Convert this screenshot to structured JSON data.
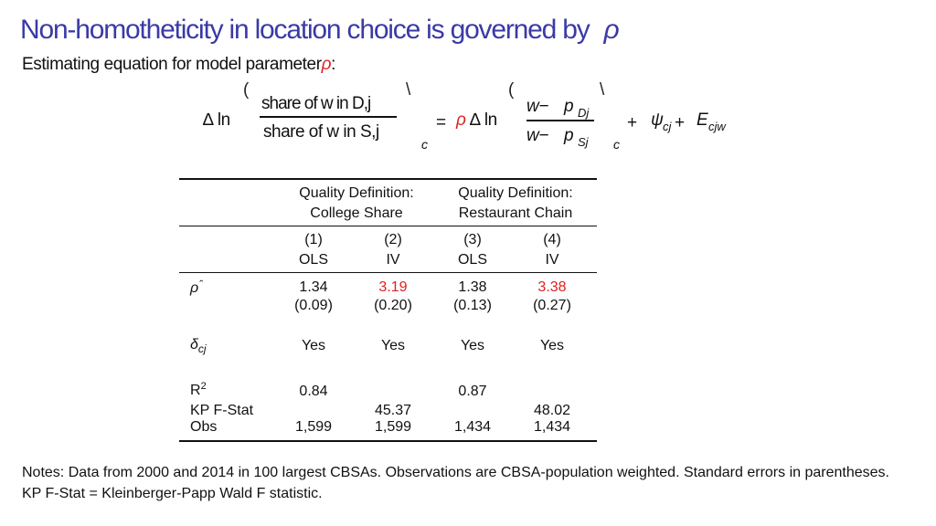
{
  "title": {
    "text": "Non-homotheticity in location choice is governed by",
    "symbol": "ρ"
  },
  "subtitle": {
    "text": "Estimating equation  for model  parameter",
    "symbol": "ρ",
    "suffix": ":"
  },
  "equation": {
    "lhs_op": "∆ ln",
    "lhs_num": "share of w in D,j",
    "lhs_den": "share of w  in S,j",
    "sub_c": "c",
    "eq": "=",
    "rho": "ρ",
    "rhs_op": "∆ ln",
    "rhs_num_w": "w−",
    "rhs_num_p": "p",
    "rhs_num_sub": "Dj",
    "rhs_den_w": "w−",
    "rhs_den_p": "p",
    "rhs_den_sub": "Sj",
    "plus1": "+",
    "psi": "ψ",
    "psi_sub": "cj",
    "plus2": "+",
    "eps": "E",
    "eps_sub": "cjw",
    "paren_open": "(",
    "paren_close": "\\"
  },
  "table": {
    "group_headers": [
      {
        "line1": "Quality Definition:",
        "line2": "College Share"
      },
      {
        "line1": "Quality Definition:",
        "line2": "Restaurant Chain"
      }
    ],
    "columns": [
      {
        "num": "(1)",
        "method": "OLS"
      },
      {
        "num": "(2)",
        "method": "IV"
      },
      {
        "num": "(3)",
        "method": "OLS"
      },
      {
        "num": "(4)",
        "method": "IV"
      }
    ],
    "rho_row": {
      "label": "ρ",
      "hat": "ˆ",
      "estimates": [
        "1.34",
        "3.19",
        "1.38",
        "3.38"
      ],
      "se": [
        "(0.09)",
        "(0.20)",
        "(0.13)",
        "(0.27)"
      ],
      "highlight": [
        false,
        true,
        false,
        true
      ]
    },
    "delta_row": {
      "label": "δ",
      "sub": "cj",
      "values": [
        "Yes",
        "Yes",
        "Yes",
        "Yes"
      ]
    },
    "r2_row": {
      "label": "R",
      "sup": "2",
      "values": [
        "0.84",
        "",
        "0.87",
        ""
      ]
    },
    "kp_row": {
      "label": "KP F-Stat",
      "values": [
        "",
        "45.37",
        "",
        "48.02"
      ]
    },
    "obs_row": {
      "label": "Obs",
      "values": [
        "1,599",
        "1,599",
        "1,434",
        "1,434"
      ]
    }
  },
  "notes": "Notes: Data from 2000 and 2014 in 100 largest CBSAs. Observations are CBSA-population weighted. Standard errors in parentheses.  KP F-Stat =   Kleinberger-Papp Wald F  statistic.",
  "colors": {
    "title": "#3a3aa6",
    "highlight": "#e02020",
    "text": "#111111"
  }
}
